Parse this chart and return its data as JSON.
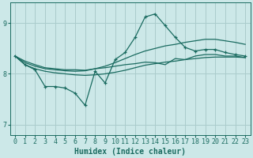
{
  "xlabel": "Humidex (Indice chaleur)",
  "xlim": [
    -0.5,
    23.5
  ],
  "ylim": [
    6.8,
    9.4
  ],
  "yticks": [
    7,
    8,
    9
  ],
  "xticks": [
    0,
    1,
    2,
    3,
    4,
    5,
    6,
    7,
    8,
    9,
    10,
    11,
    12,
    13,
    14,
    15,
    16,
    17,
    18,
    19,
    20,
    21,
    22,
    23
  ],
  "bg_color": "#cce8e8",
  "grid_color": "#aacccc",
  "line_color": "#1a6b60",
  "line_zigzag": [
    8.35,
    8.18,
    8.08,
    7.75,
    7.75,
    7.72,
    7.62,
    7.38,
    8.05,
    7.82,
    8.28,
    8.42,
    8.72,
    9.12,
    9.18,
    8.95,
    8.72,
    8.52,
    8.45,
    8.48,
    8.48,
    8.42,
    8.38,
    8.35
  ],
  "line_upper": [
    8.35,
    8.25,
    8.18,
    8.12,
    8.1,
    8.08,
    8.08,
    8.07,
    8.1,
    8.15,
    8.22,
    8.3,
    8.38,
    8.45,
    8.5,
    8.55,
    8.58,
    8.62,
    8.65,
    8.68,
    8.68,
    8.65,
    8.62,
    8.58
  ],
  "line_mid": [
    8.35,
    8.18,
    8.1,
    8.05,
    8.02,
    8.0,
    7.98,
    7.97,
    7.98,
    8.0,
    8.03,
    8.07,
    8.12,
    8.17,
    8.2,
    8.23,
    8.25,
    8.28,
    8.3,
    8.32,
    8.33,
    8.33,
    8.33,
    8.32
  ],
  "line_flat": [
    8.35,
    8.22,
    8.15,
    8.1,
    8.08,
    8.06,
    8.05,
    8.06,
    8.1,
    8.12,
    8.15,
    8.18,
    8.2,
    8.23,
    8.22,
    8.18,
    8.3,
    8.28,
    8.35,
    8.38,
    8.38,
    8.35,
    8.35,
    8.32
  ]
}
